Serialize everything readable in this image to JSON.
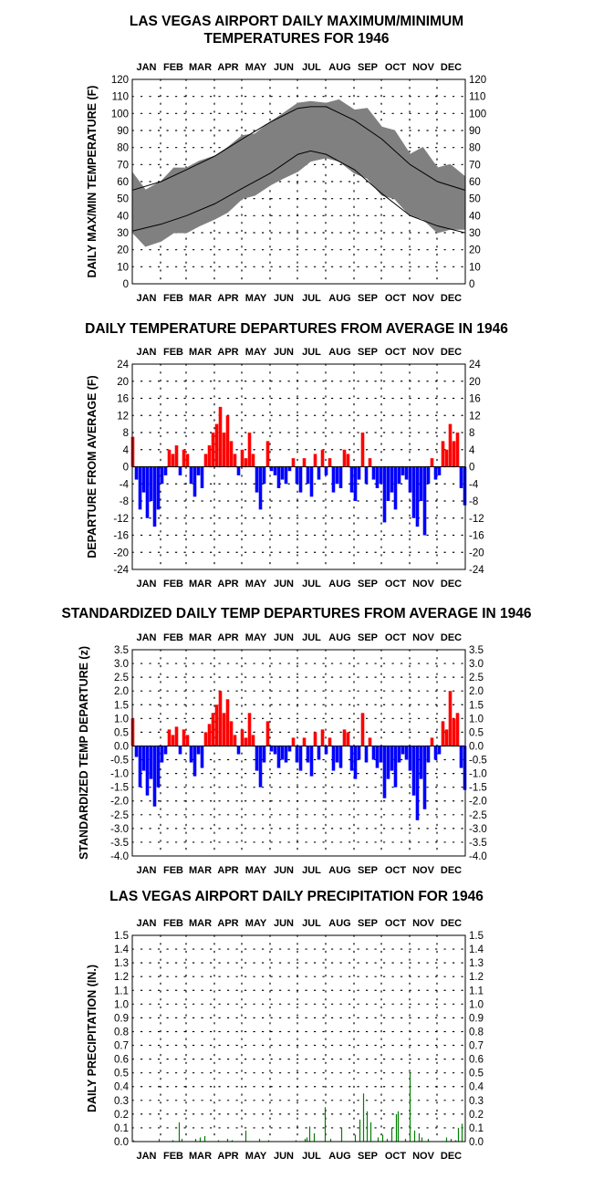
{
  "chart_data": [
    {
      "id": "temps",
      "type": "area",
      "title_lines": [
        "LAS VEGAS AIRPORT DAILY MAXIMUM/MINIMUM",
        "TEMPERATURES FOR 1946"
      ],
      "ylabel": "DAILY MAX/MIN TEMPERATURE (F)",
      "xlabel": "",
      "months": [
        "JAN",
        "FEB",
        "MAR",
        "APR",
        "MAY",
        "JUN",
        "JUL",
        "AUG",
        "SEP",
        "OCT",
        "NOV",
        "DEC"
      ],
      "ylim": [
        0,
        120
      ],
      "yticks": [
        0,
        10,
        20,
        30,
        40,
        50,
        60,
        70,
        80,
        90,
        100,
        110,
        120
      ],
      "ytick_labels": [
        "0",
        "10",
        "20",
        "30",
        "40",
        "50",
        "60",
        "70",
        "80",
        "90",
        "100",
        "110",
        "120"
      ],
      "grid": "dotted",
      "colors": {
        "range": "#808080",
        "normal": "#000000"
      },
      "series": [
        {
          "kind": "observed_max",
          "x": [
            1,
            15,
            32,
            46,
            60,
            74,
            91,
            105,
            121,
            135,
            152,
            166,
            182,
            196,
            213,
            227,
            244,
            258,
            274,
            288,
            305,
            319,
            335,
            349,
            365
          ],
          "values": [
            65,
            55,
            60,
            68,
            68,
            72,
            75,
            80,
            87,
            88,
            95,
            100,
            106,
            107,
            106,
            108,
            102,
            103,
            92,
            90,
            76,
            80,
            68,
            70,
            63
          ]
        },
        {
          "kind": "observed_min",
          "x": [
            1,
            15,
            32,
            46,
            60,
            74,
            91,
            105,
            121,
            135,
            152,
            166,
            182,
            196,
            213,
            227,
            244,
            258,
            274,
            288,
            305,
            319,
            335,
            349,
            365
          ],
          "values": [
            30,
            22,
            25,
            30,
            30,
            34,
            38,
            42,
            50,
            52,
            58,
            62,
            66,
            72,
            74,
            72,
            65,
            62,
            52,
            50,
            40,
            38,
            30,
            32,
            32
          ]
        },
        {
          "kind": "normal_max",
          "x": [
            1,
            32,
            60,
            91,
            121,
            152,
            182,
            196,
            213,
            244,
            274,
            305,
            335,
            365
          ],
          "values": [
            55,
            60,
            67,
            75,
            85,
            95,
            103,
            104,
            104,
            96,
            85,
            70,
            60,
            55
          ]
        },
        {
          "kind": "normal_min",
          "x": [
            1,
            32,
            60,
            91,
            121,
            152,
            182,
            196,
            213,
            244,
            274,
            305,
            335,
            365
          ],
          "values": [
            31,
            35,
            40,
            47,
            56,
            65,
            76,
            78,
            76,
            67,
            53,
            40,
            34,
            30
          ]
        }
      ]
    },
    {
      "id": "dep",
      "type": "bar",
      "title": "DAILY TEMPERATURE DEPARTURES FROM AVERAGE IN 1946",
      "ylabel": "DEPARTURE FROM AVERAGE (F)",
      "xlabel": "",
      "months": [
        "JAN",
        "FEB",
        "MAR",
        "APR",
        "MAY",
        "JUN",
        "JUL",
        "AUG",
        "SEP",
        "OCT",
        "NOV",
        "DEC"
      ],
      "ylim": [
        -24,
        24
      ],
      "yticks": [
        -24,
        -20,
        -16,
        -12,
        -8,
        -4,
        0,
        4,
        8,
        12,
        16,
        20,
        24
      ],
      "ytick_labels": [
        "-24",
        "-20",
        "-16",
        "-12",
        "-8",
        "-4",
        "0",
        "4",
        "8",
        "12",
        "16",
        "20",
        "24"
      ],
      "grid": "dotted",
      "colors": {
        "positive": "#ff0000",
        "negative": "#0000ff"
      },
      "x": [
        1,
        5,
        9,
        13,
        17,
        21,
        25,
        29,
        33,
        37,
        41,
        45,
        49,
        53,
        57,
        61,
        65,
        69,
        73,
        77,
        81,
        85,
        89,
        93,
        97,
        101,
        105,
        109,
        113,
        117,
        121,
        125,
        129,
        133,
        137,
        141,
        145,
        149,
        153,
        157,
        161,
        165,
        169,
        173,
        177,
        181,
        185,
        189,
        193,
        197,
        201,
        205,
        209,
        213,
        217,
        221,
        225,
        229,
        233,
        237,
        241,
        245,
        249,
        253,
        257,
        261,
        265,
        269,
        273,
        277,
        281,
        285,
        289,
        293,
        297,
        301,
        305,
        309,
        313,
        317,
        321,
        325,
        329,
        333,
        337,
        341,
        345,
        349,
        353,
        357,
        361,
        365
      ],
      "values": [
        7,
        -3,
        -10,
        -6,
        -12,
        -8,
        -14,
        -10,
        -4,
        -2,
        4,
        3,
        5,
        -2,
        4,
        3,
        -4,
        -7,
        -2,
        -5,
        3,
        5,
        8,
        10,
        14,
        8,
        12,
        6,
        3,
        -2,
        4,
        2,
        8,
        3,
        -6,
        -10,
        -4,
        6,
        -1,
        -2,
        -5,
        -3,
        -4,
        -1,
        2,
        -4,
        -6,
        2,
        -4,
        -7,
        3,
        -3,
        4,
        -2,
        2,
        -6,
        -4,
        -5,
        4,
        3,
        -6,
        -8,
        -3,
        8,
        -4,
        2,
        -3,
        -5,
        -4,
        -13,
        -8,
        -6,
        -10,
        -4,
        -2,
        -3,
        -6,
        -12,
        -14,
        -8,
        -16,
        -4,
        2,
        -3,
        -2,
        6,
        4,
        10,
        6,
        8,
        -5,
        -9
      ]
    },
    {
      "id": "std",
      "type": "bar",
      "title": "STANDARDIZED DAILY TEMP DEPARTURES FROM AVERAGE IN 1946",
      "ylabel": "STANDARDIZED TEMP DEPARTURE (z)",
      "xlabel": "",
      "months": [
        "JAN",
        "FEB",
        "MAR",
        "APR",
        "MAY",
        "JUN",
        "JUL",
        "AUG",
        "SEP",
        "OCT",
        "NOV",
        "DEC"
      ],
      "ylim": [
        -4.0,
        3.5
      ],
      "yticks": [
        -4.0,
        -3.5,
        -3.0,
        -2.5,
        -2.0,
        -1.5,
        -1.0,
        -0.5,
        0.0,
        0.5,
        1.0,
        1.5,
        2.0,
        2.5,
        3.0,
        3.5
      ],
      "ytick_labels": [
        "-4.0",
        "-3.5",
        "-3.0",
        "-2.5",
        "-2.0",
        "-1.5",
        "-1.0",
        "-0.5",
        "0.0",
        "0.5",
        "1.0",
        "1.5",
        "2.0",
        "2.5",
        "3.0",
        "3.5"
      ],
      "grid": "dotted",
      "colors": {
        "positive": "#ff0000",
        "negative": "#0000ff"
      },
      "x": [
        1,
        5,
        9,
        13,
        17,
        21,
        25,
        29,
        33,
        37,
        41,
        45,
        49,
        53,
        57,
        61,
        65,
        69,
        73,
        77,
        81,
        85,
        89,
        93,
        97,
        101,
        105,
        109,
        113,
        117,
        121,
        125,
        129,
        133,
        137,
        141,
        145,
        149,
        153,
        157,
        161,
        165,
        169,
        173,
        177,
        181,
        185,
        189,
        193,
        197,
        201,
        205,
        209,
        213,
        217,
        221,
        225,
        229,
        233,
        237,
        241,
        245,
        249,
        253,
        257,
        261,
        265,
        269,
        273,
        277,
        281,
        285,
        289,
        293,
        297,
        301,
        305,
        309,
        313,
        317,
        321,
        325,
        329,
        333,
        337,
        341,
        345,
        349,
        353,
        357,
        361,
        365
      ],
      "values": [
        1.0,
        -0.4,
        -1.5,
        -0.9,
        -1.8,
        -1.2,
        -2.2,
        -1.5,
        -0.6,
        -0.3,
        0.6,
        0.4,
        0.7,
        -0.3,
        0.6,
        0.4,
        -0.6,
        -1.1,
        -0.3,
        -0.8,
        0.5,
        0.8,
        1.2,
        1.5,
        2.0,
        1.2,
        1.7,
        0.9,
        0.4,
        -0.3,
        0.6,
        0.3,
        1.2,
        0.4,
        -0.9,
        -1.5,
        -0.6,
        0.9,
        -0.2,
        -0.3,
        -0.8,
        -0.5,
        -0.6,
        -0.2,
        0.3,
        -0.6,
        -0.9,
        0.3,
        -0.6,
        -1.1,
        0.5,
        -0.5,
        0.6,
        -0.3,
        0.3,
        -0.9,
        -0.6,
        -0.8,
        0.6,
        0.5,
        -0.9,
        -1.2,
        -0.5,
        1.2,
        -0.6,
        0.3,
        -0.5,
        -0.8,
        -0.6,
        -1.9,
        -1.2,
        -0.9,
        -1.5,
        -0.6,
        -0.3,
        -0.5,
        -0.9,
        -1.8,
        -2.7,
        -1.2,
        -2.3,
        -0.6,
        0.3,
        -0.5,
        -0.3,
        0.9,
        0.6,
        2.0,
        1.0,
        1.2,
        -0.8,
        -1.6
      ]
    },
    {
      "id": "precip",
      "type": "bar",
      "title": "LAS VEGAS AIRPORT DAILY PRECIPITATION FOR 1946",
      "ylabel": "DAILY PRECIPITATION (IN.)",
      "xlabel": "",
      "months": [
        "JAN",
        "FEB",
        "MAR",
        "APR",
        "MAY",
        "JUN",
        "JUL",
        "AUG",
        "SEP",
        "OCT",
        "NOV",
        "DEC"
      ],
      "ylim": [
        0.0,
        1.5
      ],
      "yticks": [
        0.0,
        0.1,
        0.2,
        0.3,
        0.4,
        0.5,
        0.6,
        0.7,
        0.8,
        0.9,
        1.0,
        1.1,
        1.2,
        1.3,
        1.4,
        1.5
      ],
      "ytick_labels": [
        "0.0",
        "0.1",
        "0.2",
        "0.3",
        "0.4",
        "0.5",
        "0.6",
        "0.7",
        "0.8",
        "0.9",
        "1.0",
        "1.1",
        "1.2",
        "1.3",
        "1.4",
        "1.5"
      ],
      "grid": "dotted",
      "colors": {
        "bar": "#008000"
      },
      "x": [
        2,
        30,
        45,
        52,
        55,
        70,
        75,
        80,
        95,
        105,
        110,
        125,
        140,
        150,
        180,
        190,
        192,
        195,
        200,
        212,
        218,
        230,
        245,
        250,
        254,
        258,
        262,
        270,
        275,
        280,
        285,
        290,
        292,
        300,
        305,
        310,
        315,
        318,
        325,
        345,
        350,
        355,
        358,
        362
      ],
      "values": [
        0.01,
        0.02,
        0.01,
        0.14,
        0.02,
        0.02,
        0.03,
        0.04,
        0.01,
        0.02,
        0.01,
        0.08,
        0.02,
        0.01,
        0.01,
        0.02,
        0.03,
        0.11,
        0.06,
        0.25,
        0.02,
        0.1,
        0.05,
        0.16,
        0.35,
        0.22,
        0.14,
        0.03,
        0.05,
        0.02,
        0.1,
        0.2,
        0.22,
        0.02,
        0.5,
        0.08,
        0.06,
        0.03,
        0.02,
        0.03,
        0.02,
        0.01,
        0.1,
        0.13
      ]
    }
  ]
}
